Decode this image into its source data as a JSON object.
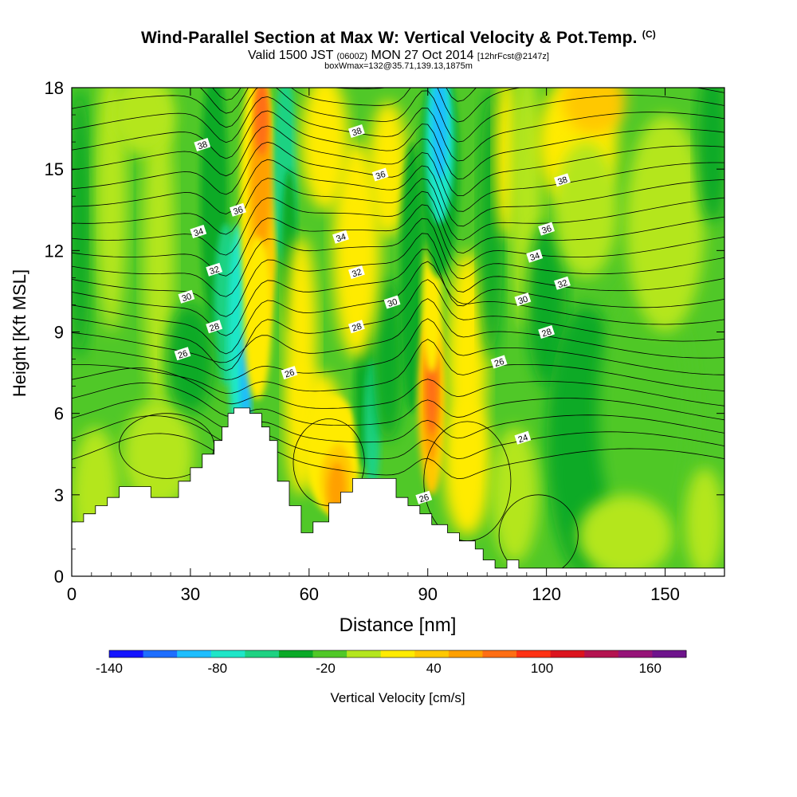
{
  "titles": {
    "main": "Wind-Parallel Section at Max W: Vertical Velocity & Pot.Temp.",
    "main_tag": "(C)",
    "valid_pre": "Valid 1500 JST",
    "valid_utc": "(0600Z)",
    "valid_date": "MON 27 Oct 2014",
    "valid_fcst": "[12hrFcst@2147z]",
    "boxinfo": "boxWmax=132@35.71,139.13,1875m"
  },
  "chart_data": {
    "type": "heatmap",
    "xlabel": "Distance [nm]",
    "ylabel": "Height [Kft MSL]",
    "xlim": [
      0,
      165
    ],
    "ylim": [
      0,
      18
    ],
    "x_ticks": [
      0,
      30,
      60,
      90,
      120,
      150
    ],
    "y_ticks": [
      0,
      3,
      6,
      9,
      12,
      15,
      18
    ],
    "colorbar": {
      "label": "Vertical Velocity [cm/s]",
      "range": [
        -140,
        180
      ],
      "ticks": [
        -140,
        -80,
        -20,
        40,
        100,
        160
      ],
      "colors": [
        "#1414ff",
        "#1e6eff",
        "#1ebeff",
        "#1ee6c8",
        "#1ed282",
        "#0aaa28",
        "#50c828",
        "#b4e61e",
        "#ffeb00",
        "#ffc800",
        "#ffa000",
        "#ff6e14",
        "#ff3214",
        "#dc141e",
        "#b41450",
        "#961478",
        "#6e148c"
      ]
    },
    "terrain_kft": [
      [
        0,
        2
      ],
      [
        3,
        2
      ],
      [
        3,
        2.3
      ],
      [
        6,
        2.3
      ],
      [
        6,
        2.6
      ],
      [
        9,
        2.6
      ],
      [
        9,
        2.9
      ],
      [
        12,
        2.9
      ],
      [
        12,
        3.3
      ],
      [
        20,
        3.3
      ],
      [
        20,
        2.9
      ],
      [
        27,
        2.9
      ],
      [
        27,
        3.5
      ],
      [
        30,
        3.5
      ],
      [
        30,
        4
      ],
      [
        33,
        4
      ],
      [
        33,
        4.5
      ],
      [
        36,
        4.5
      ],
      [
        36,
        5
      ],
      [
        38,
        5
      ],
      [
        38,
        5.5
      ],
      [
        39.5,
        5.5
      ],
      [
        39.5,
        6
      ],
      [
        41,
        6
      ],
      [
        41,
        6.2
      ],
      [
        45,
        6.2
      ],
      [
        45,
        6
      ],
      [
        48,
        6
      ],
      [
        48,
        5.5
      ],
      [
        50,
        5.5
      ],
      [
        50,
        5
      ],
      [
        52,
        5
      ],
      [
        52,
        3.5
      ],
      [
        55,
        3.5
      ],
      [
        55,
        2.6
      ],
      [
        58,
        2.6
      ],
      [
        58,
        1.6
      ],
      [
        61,
        1.6
      ],
      [
        61,
        2
      ],
      [
        65,
        2
      ],
      [
        65,
        2.7
      ],
      [
        68,
        2.7
      ],
      [
        68,
        3.1
      ],
      [
        71,
        3.1
      ],
      [
        71,
        3.6
      ],
      [
        82,
        3.6
      ],
      [
        82,
        2.9
      ],
      [
        85,
        2.9
      ],
      [
        85,
        2.6
      ],
      [
        88,
        2.6
      ],
      [
        88,
        2.3
      ],
      [
        91,
        2.3
      ],
      [
        91,
        1.9
      ],
      [
        95,
        1.9
      ],
      [
        95,
        1.6
      ],
      [
        98,
        1.6
      ],
      [
        98,
        1.3
      ],
      [
        102,
        1.3
      ],
      [
        102,
        1
      ],
      [
        104,
        1
      ],
      [
        104,
        0.6
      ],
      [
        107,
        0.6
      ],
      [
        107,
        0.3
      ],
      [
        110,
        0.3
      ],
      [
        110,
        0.6
      ],
      [
        113,
        0.6
      ],
      [
        113,
        0.3
      ],
      [
        165,
        0.3
      ]
    ],
    "updraft_cores": [
      {
        "x": 48,
        "y": 15.5,
        "w_cms": 100
      },
      {
        "x": 91,
        "y": 6.5,
        "w_cms": 120
      },
      {
        "x": 67,
        "y": 3.5,
        "w_cms": 70
      }
    ],
    "downdraft_cores": [
      {
        "x": 92,
        "y": 16.5,
        "w_cms": -80
      },
      {
        "x": 44,
        "y": 7,
        "w_cms": -70
      }
    ],
    "theta_labels": [
      {
        "text": "38",
        "x": 33,
        "y": 15.9
      },
      {
        "text": "38",
        "x": 72,
        "y": 16.4
      },
      {
        "text": "36",
        "x": 78,
        "y": 14.8
      },
      {
        "text": "38",
        "x": 124,
        "y": 14.6
      },
      {
        "text": "36",
        "x": 42,
        "y": 13.5
      },
      {
        "text": "34",
        "x": 32,
        "y": 12.7
      },
      {
        "text": "34",
        "x": 68,
        "y": 12.5
      },
      {
        "text": "36",
        "x": 120,
        "y": 12.8
      },
      {
        "text": "34",
        "x": 117,
        "y": 11.8
      },
      {
        "text": "32",
        "x": 36,
        "y": 11.3
      },
      {
        "text": "32",
        "x": 72,
        "y": 11.2
      },
      {
        "text": "32",
        "x": 124,
        "y": 10.8
      },
      {
        "text": "30",
        "x": 29,
        "y": 10.3
      },
      {
        "text": "30",
        "x": 81,
        "y": 10.1
      },
      {
        "text": "30",
        "x": 114,
        "y": 10.2
      },
      {
        "text": "28",
        "x": 36,
        "y": 9.2
      },
      {
        "text": "28",
        "x": 72,
        "y": 9.2
      },
      {
        "text": "28",
        "x": 120,
        "y": 9
      },
      {
        "text": "26",
        "x": 28,
        "y": 8.2
      },
      {
        "text": "26",
        "x": 55,
        "y": 7.5
      },
      {
        "text": "26",
        "x": 108,
        "y": 7.9
      },
      {
        "text": "24",
        "x": 114,
        "y": 5.1
      },
      {
        "text": "26",
        "x": 89,
        "y": 2.9
      }
    ]
  }
}
